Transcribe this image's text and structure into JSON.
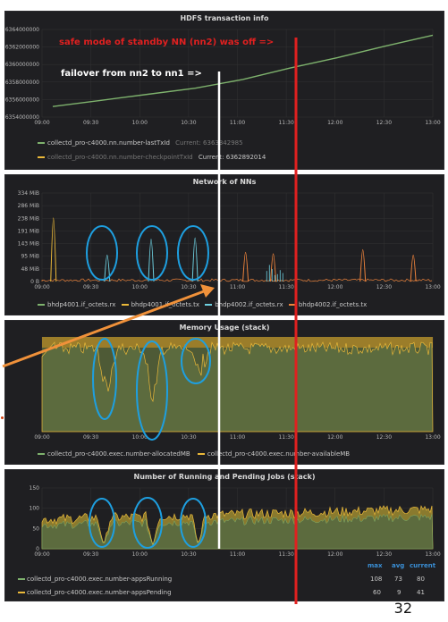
{
  "page_number": "32",
  "annotations": {
    "safe_mode": "safe mode of standby NN (nn2) was off =>",
    "failover": "failover from nn2 to nn1 =>"
  },
  "colors": {
    "green": "#7eb26d",
    "yellow": "#eab839",
    "blue": "#6ed0e0",
    "orange": "#ef843c",
    "red": "#e02020",
    "circle": "#1e9fe0",
    "arrow": "#f0913a",
    "panel_bg": "#1f1f22"
  },
  "x_ticks": [
    "09:00",
    "09:30",
    "10:00",
    "10:30",
    "11:00",
    "11:30",
    "12:00",
    "12:30",
    "13:00"
  ],
  "panels": [
    {
      "title": "HDFS transaction info",
      "y_ticks": [
        "6354000000",
        "6356000000",
        "6358000000",
        "6360000000",
        "6362000000",
        "6364000000"
      ],
      "legend": [
        {
          "label": "collectd_pro-c4000.nn.number-lastTxId",
          "current": "Current: 6363342985",
          "color": "green"
        },
        {
          "label": "collectd_pro-c4000.nn.number-checkpointTxId",
          "current": "Current: 6362892014",
          "color": "yellow"
        }
      ]
    },
    {
      "title": "Network of NNs",
      "y_ticks": [
        "0 B",
        "48 MiB",
        "95 MiB",
        "143 MiB",
        "191 MiB",
        "238 MiB",
        "286 MiB",
        "334 MiB"
      ],
      "legend": [
        {
          "label": "bhdp4001.if_octets.rx",
          "color": "green"
        },
        {
          "label": "bhdp4001.if_octets.tx",
          "color": "yellow"
        },
        {
          "label": "bhdp4002.if_octets.rx",
          "color": "blue"
        },
        {
          "label": "bhdp4002.if_octets.tx",
          "color": "orange"
        }
      ]
    },
    {
      "title": "Memory Usage (stack)",
      "y_ticks": [],
      "legend": [
        {
          "label": "collectd_pro-c4000.exec.number-allocatedMB",
          "color": "green"
        },
        {
          "label": "collectd_pro-c4000.exec.number-availableMB",
          "color": "yellow"
        }
      ]
    },
    {
      "title": "Number of Running and Pending Jobs (stack)",
      "y_ticks": [
        "0",
        "50",
        "100",
        "150"
      ],
      "stats_header": {
        "max": "max",
        "avg": "avg",
        "current": "current"
      },
      "legend": [
        {
          "label": "collectd_pro-c4000.exec.number-appsRunning",
          "max": "108",
          "avg": "73",
          "current": "80",
          "color": "green"
        },
        {
          "label": "collectd_pro-c4000.exec.number-appsPending",
          "max": "60",
          "avg": "9",
          "current": "41",
          "color": "yellow"
        }
      ]
    }
  ],
  "chart_data": [
    {
      "type": "line",
      "title": "HDFS transaction info",
      "x": [
        "09:00",
        "09:30",
        "10:00",
        "10:30",
        "11:00",
        "11:30",
        "12:00",
        "12:30",
        "13:00"
      ],
      "ylim": [
        6354000000,
        6364000000
      ],
      "series": [
        {
          "name": "collectd_pro-c4000.nn.number-lastTxId",
          "values": [
            6355200000,
            6355900000,
            6356600000,
            6357300000,
            6358300000,
            6359600000,
            6360800000,
            6362100000,
            6363342985
          ]
        }
      ]
    },
    {
      "type": "line",
      "title": "Network of NNs",
      "x": [
        "09:00",
        "09:30",
        "10:00",
        "10:30",
        "11:00",
        "11:30",
        "12:00",
        "12:30",
        "13:00"
      ],
      "ylim": [
        0,
        334
      ],
      "spikes_mib": [
        {
          "series": "bhdp4001.if_octets.tx",
          "time": "09:07",
          "value": 240
        },
        {
          "series": "bhdp4002.if_octets.rx",
          "time": "09:40",
          "value": 100
        },
        {
          "series": "bhdp4002.if_octets.rx",
          "time": "10:07",
          "value": 160
        },
        {
          "series": "bhdp4002.if_octets.rx",
          "time": "10:34",
          "value": 165
        },
        {
          "series": "bhdp4002.if_octets.tx",
          "time": "11:05",
          "value": 110
        },
        {
          "series": "bhdp4002.if_octets.tx",
          "time": "11:22",
          "value": 105
        },
        {
          "series": "bhdp4002.if_octets.tx",
          "time": "12:17",
          "value": 120
        },
        {
          "series": "bhdp4002.if_octets.tx",
          "time": "12:48",
          "value": 100
        }
      ]
    },
    {
      "type": "area",
      "title": "Memory Usage (stack)",
      "x": [
        "09:00",
        "09:30",
        "10:00",
        "10:30",
        "11:00",
        "11:30",
        "12:00",
        "12:30",
        "13:00"
      ]
    },
    {
      "type": "area",
      "title": "Number of Running and Pending Jobs (stack)",
      "x": [
        "09:00",
        "09:30",
        "10:00",
        "10:30",
        "11:00",
        "11:30",
        "12:00",
        "12:30",
        "13:00"
      ],
      "ylim": [
        0,
        150
      ]
    }
  ]
}
